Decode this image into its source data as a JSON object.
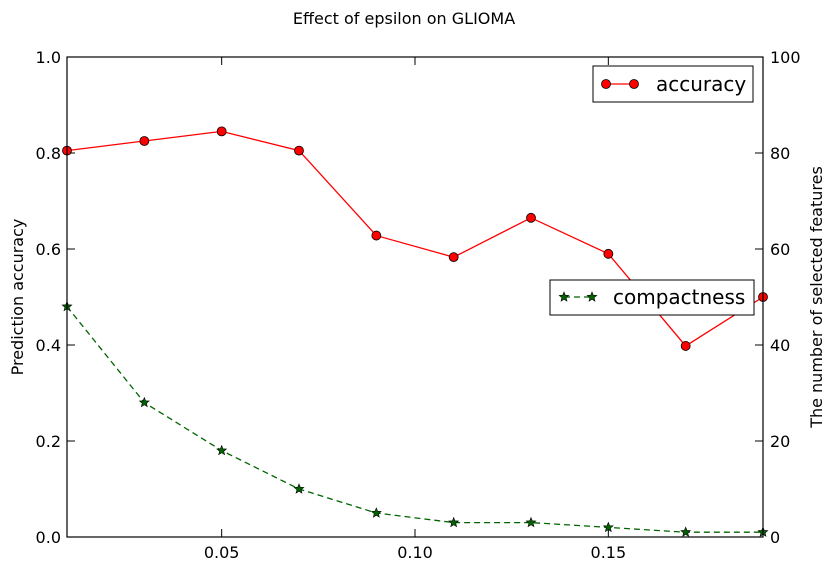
{
  "chart_data": {
    "type": "line",
    "title": "Effect of epsilon on GLIOMA",
    "xlabel": "",
    "ylabel_left": "Prediction accuracy",
    "ylabel_right": "The number of selected features",
    "xlim": [
      0.01,
      0.19
    ],
    "ylim_left": [
      0.0,
      1.0
    ],
    "ylim_right": [
      0,
      100
    ],
    "x_ticks": [
      0.05,
      0.1,
      0.15
    ],
    "x_tick_labels": [
      "0.05",
      "0.10",
      "0.15"
    ],
    "y_left_ticks": [
      0.0,
      0.2,
      0.4,
      0.6,
      0.8,
      1.0
    ],
    "y_left_tick_labels": [
      "0.0",
      "0.2",
      "0.4",
      "0.6",
      "0.8",
      "1.0"
    ],
    "y_right_ticks": [
      0,
      20,
      40,
      60,
      80,
      100
    ],
    "y_right_tick_labels": [
      "0",
      "20",
      "40",
      "60",
      "80",
      "100"
    ],
    "x": [
      0.01,
      0.03,
      0.05,
      0.07,
      0.09,
      0.11,
      0.13,
      0.15,
      0.17,
      0.19
    ],
    "series": [
      {
        "name": "accuracy",
        "axis": "left",
        "values": [
          0.805,
          0.825,
          0.845,
          0.805,
          0.628,
          0.583,
          0.665,
          0.59,
          0.398,
          0.5
        ],
        "color": "#ff0000",
        "marker": "circle",
        "line_style": "solid",
        "legend_position": "top-right"
      },
      {
        "name": "compactness",
        "axis": "right",
        "values": [
          48,
          28,
          18,
          10,
          5,
          3,
          3,
          2,
          1,
          1
        ],
        "color": "#006400",
        "marker": "star",
        "line_style": "dashed",
        "legend_position": "center-right"
      }
    ],
    "grid": false
  }
}
